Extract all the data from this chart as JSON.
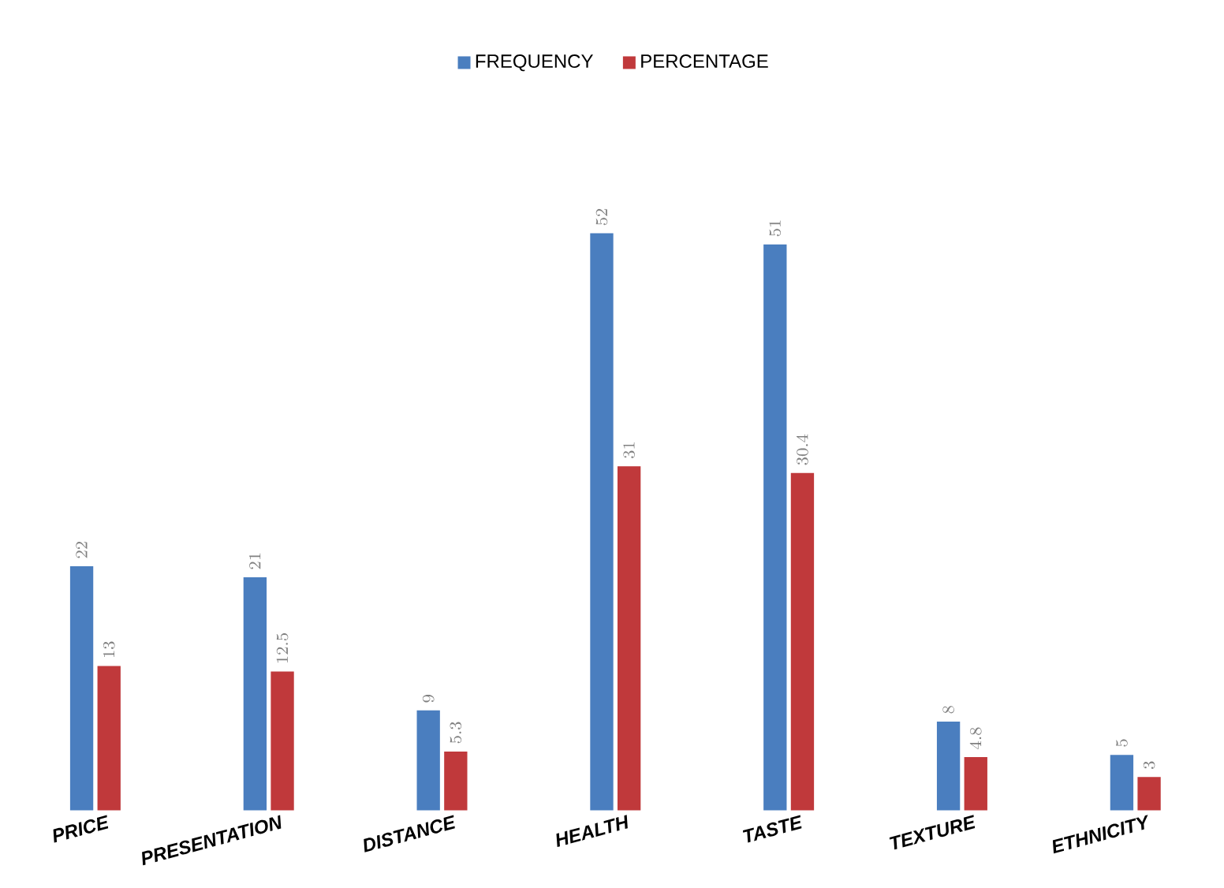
{
  "chart_data": {
    "type": "bar",
    "categories": [
      "PRICE",
      "PRESENTATION",
      "DISTANCE",
      "HEALTH",
      "TASTE",
      "TEXTURE",
      "ETHNICITY"
    ],
    "series": [
      {
        "name": "FREQUENCY",
        "color": "#4a7ebf",
        "values": [
          22,
          21,
          9,
          52,
          51,
          8,
          5
        ]
      },
      {
        "name": "PERCENTAGE",
        "color": "#c0393b",
        "values": [
          13,
          12.5,
          5.3,
          31,
          30.4,
          4.8,
          3
        ]
      }
    ],
    "data_labels": true,
    "legend": "top",
    "tick_labels": "x"
  }
}
